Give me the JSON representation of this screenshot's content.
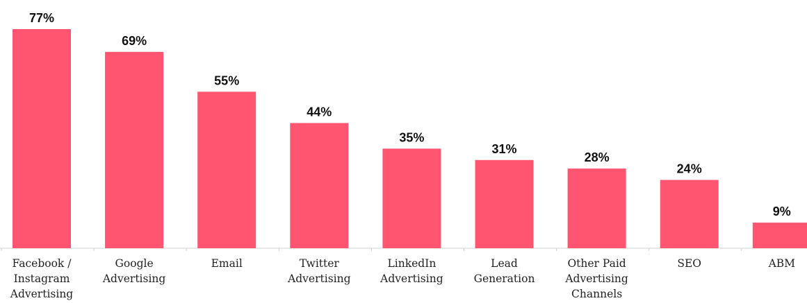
{
  "chart_data": {
    "type": "bar",
    "categories": [
      "Facebook / Instagram Advertising",
      "Google Advertising",
      "Email",
      "Twitter Advertising",
      "LinkedIn Advertising",
      "Lead Generation",
      "Other Paid Advertising Channels",
      "SEO",
      "ABM"
    ],
    "category_lines": [
      [
        "Facebook /",
        "Instagram",
        "Advertising"
      ],
      [
        "Google",
        "Advertising"
      ],
      [
        "Email"
      ],
      [
        "Twitter",
        "Advertising"
      ],
      [
        "LinkedIn",
        "Advertising"
      ],
      [
        "Lead",
        "Generation"
      ],
      [
        "Other Paid",
        "Advertising",
        "Channels"
      ],
      [
        "SEO"
      ],
      [
        "ABM"
      ]
    ],
    "values": [
      77,
      69,
      55,
      44,
      35,
      31,
      28,
      24,
      9
    ],
    "value_labels": [
      "77%",
      "69%",
      "55%",
      "44%",
      "35%",
      "31%",
      "28%",
      "24%",
      "9%"
    ],
    "unit": "%",
    "title": "",
    "xlabel": "",
    "ylabel": "",
    "ylim": [
      0,
      77
    ],
    "grid": false,
    "legend": "none",
    "bar_color": "#FF5571",
    "text_color": "#111111"
  }
}
